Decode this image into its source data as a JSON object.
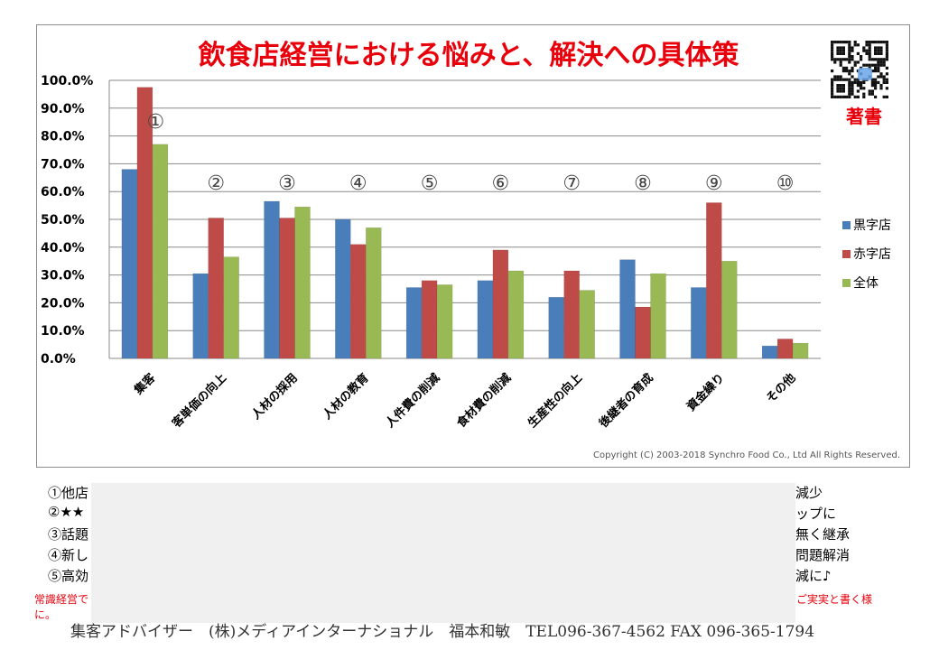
{
  "chart_data": {
    "type": "bar",
    "title": "飲食店経営における悩みと、解決への具体策",
    "categories": [
      "集客",
      "客単価の向上",
      "人材の採用",
      "人材の教育",
      "人件費の削減",
      "食材費の削減",
      "生産性の向上",
      "後継者の育成",
      "資金繰り",
      "その他"
    ],
    "series": [
      {
        "name": "黒字店",
        "color": "#4a7ebb",
        "values": [
          68,
          30.5,
          56.5,
          50,
          25.5,
          28,
          22,
          35.5,
          25.5,
          4.5
        ]
      },
      {
        "name": "赤字店",
        "color": "#be4b48",
        "values": [
          97.5,
          50.5,
          50.5,
          41,
          28,
          39,
          31.5,
          18.5,
          56,
          7
        ]
      },
      {
        "name": "全体",
        "color": "#98b954",
        "values": [
          77,
          36.5,
          54.5,
          47,
          26.5,
          31.5,
          24.5,
          30.5,
          35,
          5.5
        ]
      }
    ],
    "ylim": [
      0,
      100
    ],
    "yticks": [
      "0.0%",
      "10.0%",
      "20.0%",
      "30.0%",
      "40.0%",
      "50.0%",
      "60.0%",
      "70.0%",
      "80.0%",
      "90.0%",
      "100.0%"
    ],
    "ytick_values": [
      0,
      10,
      20,
      30,
      40,
      50,
      60,
      70,
      80,
      90,
      100
    ],
    "annotations": [
      "①",
      "②",
      "③",
      "④",
      "⑤",
      "⑥",
      "⑦",
      "⑧",
      "⑨",
      "⑩"
    ],
    "legend_position": "right",
    "grid": true,
    "copyright": "Copyright (C) 2003-2018  Synchro Food Co., Ltd  All Rights Reserved."
  },
  "author_label": "著書",
  "notes": {
    "left": [
      "①他店",
      "②★★",
      "③話題",
      "④新し",
      "⑤高効"
    ],
    "right": [
      "減少",
      "ップに",
      "無く継承",
      "問題解消",
      "減に♪"
    ],
    "red_left": "常識経営で",
    "red_left2": "に。",
    "red_right": "ご実実と書く様"
  },
  "footer": "集客アドバイザー　(株)メディアインターナショナル　福本和敏　TEL096-367-4562 FAX 096-365-1794",
  "colors": {
    "title": "#e8000b",
    "frame": "#8c8c8c",
    "grid": "#8a8a8a"
  }
}
